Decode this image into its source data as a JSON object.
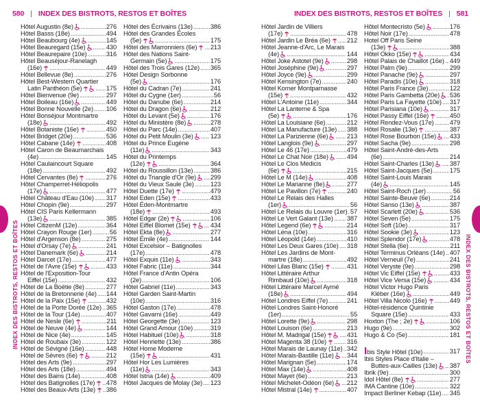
{
  "header_left": {
    "page": "580",
    "title": "INDEX DES BISTROTS, RESTOS ET BOÎTES"
  },
  "header_right": {
    "page": "581",
    "title": "INDEX DES BISTROTS, RESTOS ET BOÎTES"
  },
  "side_tab": "INDEX DES BISTROTS, RESTOS ET BOÎTES",
  "accent_color": "#c8157f",
  "icon_legend": {
    "t": "terrace-parasol-icon",
    "a": "wheelchair-accessible-icon"
  },
  "columns": [
    [
      [
        "",
        "Hôtel Augustin (8e)",
        "a",
        "276"
      ],
      [
        "",
        "Hôtel Basss (18e)",
        "",
        "494"
      ],
      [
        "",
        "Hôtel Beaubourg (4e)",
        "a",
        "145"
      ],
      [
        "",
        "Hôtel Beauregard (15e)",
        "a",
        "430"
      ],
      [
        "",
        "Hôtel Beaurepaire (10e)",
        "",
        "316"
      ],
      [
        "Hôtel Beauséjour-Ranelagh",
        "(16e)",
        "t",
        "449"
      ],
      [
        "",
        "Hôtel Bellevue (8e)",
        "",
        "276"
      ],
      [
        "Hôtel Best-Western Quartier",
        "Latin Panthéon (5e)",
        "ta",
        "175"
      ],
      [
        "",
        "Hôtel Bienvenue (9e)",
        "",
        "297"
      ],
      [
        "",
        "Hôtel Boileau (16e)",
        "a",
        "449"
      ],
      [
        "",
        "Hôtel Bonne Nouvelle (2e)",
        "",
        "106"
      ],
      [
        "Hôtel Bonséjour Montmartre",
        "(18e)",
        "a",
        "492"
      ],
      [
        "",
        "Hôtel Botaniste (16e)",
        "t",
        "450"
      ],
      [
        "",
        "Hôtel Bridget (20e)",
        "",
        "536"
      ],
      [
        "",
        "Hôtel Cabane (14e)",
        "t",
        "408"
      ],
      [
        "Hôtel Caron de Beaumarchais",
        "(4e)",
        "",
        "145"
      ],
      [
        "Hôtel Caulaincourt Square",
        "(18e)",
        "",
        "492"
      ],
      [
        "",
        "Hôtel Cervantes (8e)",
        "t",
        "276"
      ],
      [
        "Hôtel Champerret-Héliopolis",
        "(17e)",
        "a",
        "477"
      ],
      [
        "",
        "Hôtel Château d'Eau (10e)",
        "",
        "317"
      ],
      [
        "",
        "Hôtel Chopin (9e)",
        "",
        "297"
      ],
      [
        "Hôtel CIS Paris Kellermann",
        "(13e)",
        "a",
        "385"
      ],
      [
        "",
        "Hôtel CitizenM (12e)",
        "",
        "364"
      ],
      [
        "",
        "Hôtel Crayon Rouge (1er)",
        "",
        "56"
      ],
      [
        "",
        "Hôtel d'Argenson (8e)",
        "",
        "275"
      ],
      [
        "",
        "Hôtel d'Orsay (7e)",
        "a",
        "241"
      ],
      [
        "",
        "Hôtel Danemark (6e)",
        "a",
        "214"
      ],
      [
        "",
        "Hôtel Darcet (17e)",
        "",
        "477"
      ],
      [
        "",
        "Hôtel de l'Avre (15e)",
        "ta",
        "433"
      ],
      [
        "Hôtel de l'Exposition-Tour",
        "Eiffel (15e)",
        "",
        "432"
      ],
      [
        "",
        "Hôtel de La Boétie (8e)",
        "",
        "277"
      ],
      [
        "",
        "Hôtel de la Bretonnerie (4e)",
        "",
        "144"
      ],
      [
        "",
        "Hôtel de la Paix (15e)",
        "t",
        "432"
      ],
      [
        "",
        "Hôtel de la Porte Dorée (12e)",
        "",
        "365"
      ],
      [
        "",
        "Hôtel de la Tour (14e)",
        "",
        "407"
      ],
      [
        "",
        "Hôtel de Nesle (6e)",
        "t",
        "211"
      ],
      [
        "",
        "Hôtel de Neuve (4e)",
        "a",
        "144"
      ],
      [
        "",
        "Hôtel de Nice (4e)",
        "",
        "145"
      ],
      [
        "",
        "Hôtel de Roubaix (3e)",
        "",
        "122"
      ],
      [
        "",
        "Hôtel de Sévigné (16e)",
        "",
        "448"
      ],
      [
        "",
        "Hôtel de Sèvres (6e)",
        "ta",
        "212"
      ],
      [
        "",
        "Hôtel des Arts (9e)",
        "",
        "297"
      ],
      [
        "",
        "Hôtel des Arts (18e)",
        "",
        "494"
      ],
      [
        "",
        "Hôtel des Bains (14e)",
        "",
        "408"
      ],
      [
        "",
        "Hôtel des Batignolles (17e)",
        "t",
        "478"
      ],
      [
        "",
        "Hôtel des Beaux-Arts (13e)",
        "t",
        "386"
      ]
    ],
    [
      [
        "",
        "Hôtel des Écrivains (13e)",
        "",
        "386"
      ],
      [
        "Hôtel des Grandes Écoles",
        "(5e)",
        "ta",
        "175"
      ],
      [
        "",
        "Hôtel des Marronniers (6e)",
        "t",
        "213"
      ],
      [
        "Hôtel des Nations Saint-",
        "Germain (5e)",
        "a",
        "175"
      ],
      [
        "",
        "Hôtel des Trois Gares (12e)",
        "",
        "365"
      ],
      [
        "Hôtel Design Sorbonne",
        "(5e)",
        "a",
        "176"
      ],
      [
        "",
        "Hôtel du Cadran (7e)",
        "",
        "241"
      ],
      [
        "",
        "Hôtel du Cygne (1er)",
        "",
        "56"
      ],
      [
        "",
        "Hôtel du Danube (6e)",
        "",
        "214"
      ],
      [
        "",
        "Hôtel du Dragon (6e)",
        "a",
        "212"
      ],
      [
        "",
        "Hôtel du Levant (5e)",
        "a",
        "176"
      ],
      [
        "",
        "Hôtel du Ministère (8e)",
        "a",
        "278"
      ],
      [
        "",
        "Hôtel du Parc (14e)",
        "",
        "407"
      ],
      [
        "",
        "Hôtel du Petit Moulin (3e)",
        "a",
        "123"
      ],
      [
        "Hôtel du Prince Eugène",
        "(11e)",
        "a",
        "343"
      ],
      [
        "Hôtel du Printemps",
        "(12e)",
        "ta",
        "364"
      ],
      [
        "",
        "Hôtel du Roussillon (13e)",
        "",
        "386"
      ],
      [
        "",
        "Hôtel du Triangle d'Or (9e)",
        "a",
        "299"
      ],
      [
        "",
        "Hôtel du Vieux Saule (3e)",
        "",
        "123"
      ],
      [
        "",
        "Hôtel Duette (17e)",
        "t",
        "479"
      ],
      [
        "",
        "Hôtel Eden (15e)",
        "t",
        "433"
      ],
      [
        "Hôtel Éden-Montmartre",
        "(18e)",
        "t",
        "493"
      ],
      [
        "",
        "Hôtel Edgar (2e)",
        "ta",
        "106"
      ],
      [
        "",
        "Hôtel Eiffel Blomet (15e)",
        "ta",
        "434"
      ],
      [
        "",
        "Hôtel Ekta (8e)",
        "a",
        "277"
      ],
      [
        "",
        "Hôtel Émile (4e)",
        "",
        "144"
      ],
      [
        "Hôtel Excelsior – Batignolles",
        "(17e)",
        "",
        "478"
      ],
      [
        "",
        "Hôtel Exquis (11e)",
        "a",
        "343"
      ],
      [
        "",
        "Hôtel Fabric (11e)",
        "",
        "344"
      ],
      [
        "Hôtel France d'Antin Opéra",
        "(2e)",
        "",
        "106"
      ],
      [
        "",
        "Hôtel Gabriel (11e)",
        "",
        "343"
      ],
      [
        "Hôtel Garden Saint-Martin",
        "(10e)",
        "",
        "316"
      ],
      [
        "",
        "Hôtel Gaston (17e)",
        "",
        "478"
      ],
      [
        "",
        "Hôtel Gavarni (16e)",
        "",
        "449"
      ],
      [
        "",
        "Hôtel Georgette (3e)",
        "",
        "123"
      ],
      [
        "",
        "Hôtel Grand Amour (10e)",
        "",
        "319"
      ],
      [
        "",
        "Hôtel Habituel (10e)",
        "a",
        "318"
      ],
      [
        "",
        "Hôtel Henriette (13e)",
        "",
        "386"
      ],
      [
        "Hôtel Home Moderne",
        "(15e)",
        "ta",
        "431"
      ],
      [
        "Hôtel Hor Les Lumières",
        "(11e)",
        "a",
        "343"
      ],
      [
        "",
        "Hôtel Istria (14e)",
        "a",
        "409"
      ],
      [
        "",
        "Hôtel Jacques de Molay (3e)",
        "",
        "123"
      ]
    ],
    [
      [
        "Hôtel Jardin de Villiers",
        "(17e)",
        "t",
        "478"
      ],
      [
        "",
        "Hôtel Jardin Le Bréa (6e)",
        "t",
        "212"
      ],
      [
        "Hôtel Jeanne-d'Arc, Le Marais",
        "(4e)",
        "a",
        "144"
      ],
      [
        "",
        "Hôtel Joke Astotel (9e)",
        "a",
        "298"
      ],
      [
        "",
        "Hôtel Joséphine (9e)",
        "a",
        "297"
      ],
      [
        "",
        "Hôtel Joyce (9e)",
        "a",
        "299"
      ],
      [
        "",
        "Hôtel Kensington (7e)",
        "",
        "240"
      ],
      [
        "Hôtel Korner Montparnasse",
        "(15e)",
        "t",
        "432"
      ],
      [
        "",
        "Hôtel L'Antoine (11e)",
        "",
        "344"
      ],
      [
        "Hôtel La Lanterne & Spa",
        "(5e)",
        "ta",
        "176"
      ],
      [
        "",
        "Hôtel La Louisiane (6e)",
        "",
        "212"
      ],
      [
        "",
        "Hôtel La Manufacture (13e)",
        "",
        "388"
      ],
      [
        "",
        "Hôtel La Parizienne (6e)",
        "a",
        "213"
      ],
      [
        "",
        "Hôtel Langlois (9e)",
        "a",
        "297"
      ],
      [
        "",
        "Hôtel Le 46 (17e)",
        "",
        "479"
      ],
      [
        "",
        "Hôtel Le Chat Noir (18e)",
        "a",
        "494"
      ],
      [
        "Hôtel Le Clos Médicis",
        "(6e)",
        "ta",
        "215"
      ],
      [
        "",
        "Hôtel Le M (14e)",
        "a",
        "408"
      ],
      [
        "",
        "Hôtel Le Marianne (8e)",
        "a",
        "277"
      ],
      [
        "",
        "Hôtel Le Pavillon (7e)",
        "t",
        "240"
      ],
      [
        "Hôtel Le Relais des Halles",
        "(1er)",
        "a",
        "56"
      ],
      [
        "",
        "Hôtel Le Relais du Louvre (1er)",
        "",
        "57"
      ],
      [
        "",
        "Hôtel Le Vert Galant (13e)",
        "",
        "387"
      ],
      [
        "",
        "Hôtel Legend (6e)",
        "ta",
        "214"
      ],
      [
        "",
        "Hôtel Léna (10e)",
        "",
        "316"
      ],
      [
        "",
        "Hôtel Léopold (14e)",
        "",
        "410"
      ],
      [
        "",
        "Hôtel Les Deux Gares (10e)",
        "",
        "318"
      ],
      [
        "Hôtel Les Jardins de Mont-",
        "martre (18e)",
        "",
        "492"
      ],
      [
        "",
        "Hôtel Lilas Blanc (15e)",
        "t",
        "431"
      ],
      [
        "Hôtel Littéraire Arthur",
        "Rimbaud (10e)",
        "a",
        "318"
      ],
      [
        "Hôtel Littéraire Marcel Aymé",
        "(18e)",
        "a",
        "494"
      ],
      [
        "",
        "Hôtel Londres Eiffel (7e)",
        "",
        "241"
      ],
      [
        "Hôtel Londres Saint-Honoré",
        "(1er)",
        "",
        "55"
      ],
      [
        "",
        "Hôtel Lorette (9e)",
        "a",
        "298"
      ],
      [
        "",
        "Hôtel Louison (6e)",
        "",
        "213"
      ],
      [
        "",
        "Hôtel M. Madrigal (15e)",
        "ta",
        "431"
      ],
      [
        "",
        "Hôtel Magenta 38 (10e)",
        "t",
        "316"
      ],
      [
        "",
        "Hôtel Marais de Launay (11e)",
        "",
        "342"
      ],
      [
        "",
        "Hôtel Marais-Bastille (11e)",
        "a",
        "344"
      ],
      [
        "",
        "Hôtel Marignan (5e)",
        "",
        "174"
      ],
      [
        "",
        "Hôtel Max (14e)",
        "a",
        "408"
      ],
      [
        "",
        "Hôtel Mayet (6e)",
        "",
        "213"
      ],
      [
        "",
        "Hôtel Michelet-Odéon (6e)",
        "a",
        "212"
      ],
      [
        "",
        "Hôtel Mistral (14e)",
        "t",
        "407"
      ]
    ],
    [
      [
        "",
        "Hôtel Montecristo (5e)",
        "a",
        "176"
      ],
      [
        "",
        "Hôtel Noir (17e)",
        "",
        "478"
      ],
      [
        "Hotel Off Paris Seine",
        "(13e)",
        "ta",
        "388"
      ],
      [
        "",
        "Hôtel Okko (15e)",
        "ta",
        "434"
      ],
      [
        "",
        "Hôtel Palais de Chaillot (16e)",
        "",
        "449"
      ],
      [
        "",
        "Hôtel Palm (9e)",
        "",
        "299"
      ],
      [
        "",
        "Hôtel Panache (9e)",
        "a",
        "297"
      ],
      [
        "",
        "Hôtel Paradis (10e)",
        "a",
        "318"
      ],
      [
        "",
        "Hôtel Paris France (3e)",
        "",
        "122"
      ],
      [
        "",
        "Hôtel Paris Gambetta (20e)",
        "a",
        "536"
      ],
      [
        "",
        "Hôtel Paris La Fayette (10e)",
        "",
        "317"
      ],
      [
        "",
        "Hôtel Parisiana (10e)",
        "a",
        "317"
      ],
      [
        "",
        "Hôtel Passy Eiffel (16e)",
        "t",
        "450"
      ],
      [
        "",
        "Hôtel Rendez-Vous (17e)",
        "",
        "479"
      ],
      [
        "",
        "Hôtel Rosalie (13e)",
        "t",
        "387"
      ],
      [
        "",
        "Hôtel Rose Bourbon (15e)",
        "a",
        "433"
      ],
      [
        "",
        "Hôtel Sacha (9e)",
        "",
        "298"
      ],
      [
        "Hôtel Saint-André-des-Arts",
        "(6e)",
        "",
        "214"
      ],
      [
        "",
        "Hôtel Saint-Charles (13e)",
        "a",
        "387"
      ],
      [
        "",
        "Hôtel Saint-Jacques (5e)",
        "",
        "175"
      ],
      [
        "Hôtel Saint-Louis Marais",
        "(4e)",
        "a",
        "145"
      ],
      [
        "",
        "Hôtel Saint-Roch (1er)",
        "",
        "56"
      ],
      [
        "",
        "Hôtel Sainte-Beuve (6e)",
        "",
        "214"
      ],
      [
        "",
        "Hôtel Sanso (13e)",
        "a",
        "387"
      ],
      [
        "",
        "Hôtel Scarlett (20e)",
        "a",
        "536"
      ],
      [
        "",
        "Hôtel Seven (5e)",
        "",
        "175"
      ],
      [
        "",
        "Hôtel Soft (10e)",
        "",
        "317"
      ],
      [
        "",
        "Hôtel Sookie (3e)",
        "a",
        "123"
      ],
      [
        "",
        "Hôtel Splendor (17e)",
        "a",
        "478"
      ],
      [
        "",
        "Hôtel Stella (6e)",
        "",
        "211"
      ],
      [
        "",
        "Hôtel Terminus Orléans (14e)",
        "",
        "407"
      ],
      [
        "",
        "Hôtel Verneuil (7e)",
        "",
        "241"
      ],
      [
        "",
        "Hôtel Veryste (9e)",
        "",
        "298"
      ],
      [
        "",
        "Hôtel Vic Eiffel (15e)",
        "ta",
        "433"
      ],
      [
        "",
        "Hôtel Vice Versa (15e)",
        "a",
        "434"
      ],
      [
        "Hôtel Victor Hugo Paris",
        "Kléber (16e)",
        "a",
        "449"
      ],
      [
        "",
        "Hôtel Villa Nicolo (16e)",
        "t",
        "449"
      ],
      [
        "Hôtel-résidence Quintinie",
        "Square (15e)",
        "",
        "433"
      ],
      [
        "",
        "Hoxton (The ; 2e)",
        "ta",
        "106"
      ],
      [
        "",
        "Hugo (9e)",
        "",
        "302"
      ],
      [
        "",
        "Hugo & Co (5e)",
        "",
        "181"
      ],
      [
        "GAP",
        "I",
        "",
        ""
      ],
      [
        "",
        "Ibis Style Hôtel (10e)",
        "",
        "317"
      ],
      [
        "Ibis Styles Place d'Italie –",
        "Buttes-aux-Cailles (13e)",
        "a",
        "387"
      ],
      [
        "",
        "Ibrik (9e)",
        "",
        "300"
      ],
      [
        "",
        "Idol Hôtel (8e)",
        "ta",
        "277"
      ],
      [
        "",
        "IMA Cantine (10e)",
        "",
        "322"
      ],
      [
        "",
        "Impact Berliner Kebap (11e)",
        "",
        "345"
      ]
    ]
  ]
}
